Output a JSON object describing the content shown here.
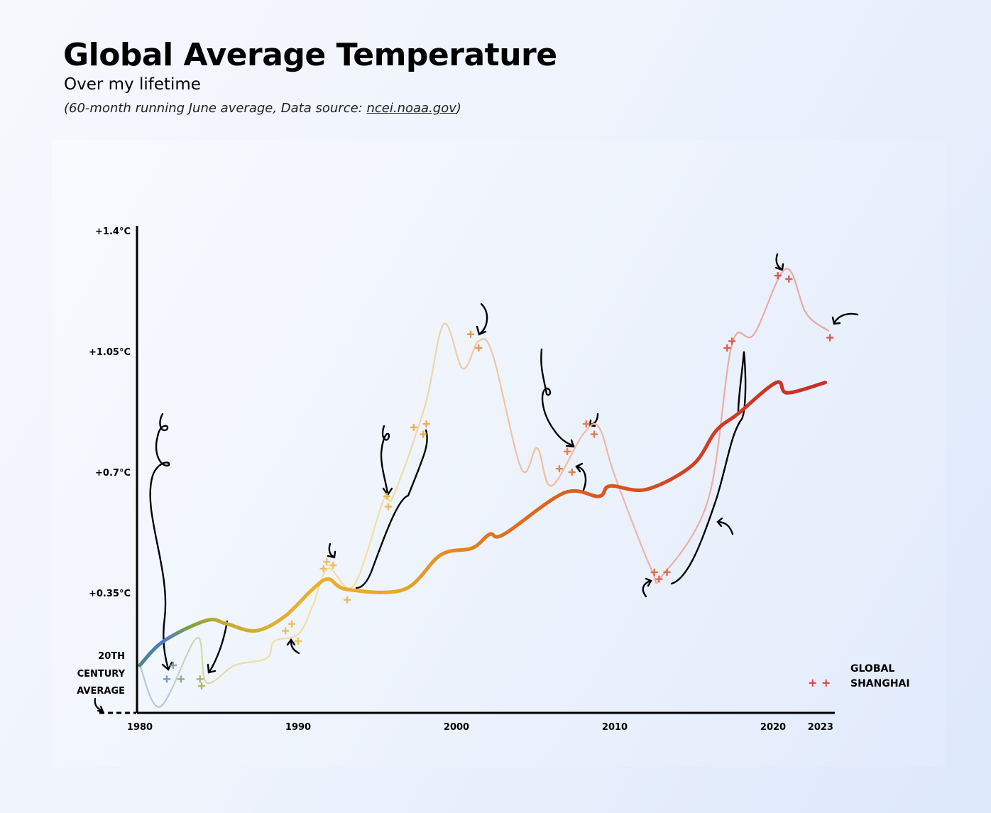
{
  "header": {
    "title": "Global Average Temperature",
    "subtitle": "Over my lifetime",
    "note_prefix": "(60-month running June average, Data source: ",
    "note_link": "ncei.noaa.gov",
    "note_suffix": ")"
  },
  "chart_data": {
    "type": "line",
    "title": "Global Average Temperature",
    "xlim": [
      1980,
      2023
    ],
    "ylim": [
      0,
      1.4
    ],
    "x_ticks": [
      1980,
      1990,
      2000,
      2010,
      2020,
      2023
    ],
    "x_tick_labels": [
      "1980",
      "1990",
      "2000",
      "2010",
      "2020",
      "2023"
    ],
    "y_ticks": [
      0.35,
      0.7,
      1.05,
      1.4
    ],
    "y_tick_labels": [
      "+0.35°C",
      "+0.7°C",
      "+1.05°C",
      "+1.4°C"
    ],
    "baseline_label": [
      "20TH",
      "CENTURY",
      "AVERAGE"
    ],
    "grid": false,
    "legend_position": "bottom-right",
    "series": [
      {
        "name": "GLOBAL",
        "x": [
          1980,
          1981.5,
          1984.2,
          1985.5,
          1987.3,
          1989.1,
          1990.9,
          1991.9,
          1993.1,
          1996.7,
          1999.0,
          2001,
          2002.1,
          2003,
          2006.8,
          2009,
          2009.7,
          2012,
          2014.9,
          2016.4,
          2017.8,
          2020.2,
          2020.9,
          2023.3
        ],
        "y": [
          0.14,
          0.21,
          0.27,
          0.26,
          0.24,
          0.28,
          0.36,
          0.39,
          0.36,
          0.36,
          0.46,
          0.48,
          0.52,
          0.52,
          0.64,
          0.63,
          0.66,
          0.65,
          0.72,
          0.82,
          0.87,
          0.96,
          0.93,
          0.96
        ]
      },
      {
        "name": "SHANGHAI",
        "x": [
          1980,
          1981.3,
          1983.6,
          1984.2,
          1986,
          1988,
          1988.5,
          1990,
          1990.9,
          1991.9,
          1993.5,
          1995.4,
          1996,
          1998,
          1999.2,
          2000.4,
          2001.4,
          2002.3,
          2004.1,
          2005.1,
          2006,
          2008,
          2009,
          2010,
          2012.3,
          2013,
          2015.9,
          2017.4,
          2018.8,
          2020.8,
          2022.1,
          2023.5
        ],
        "y": [
          0.14,
          0.02,
          0.22,
          0.09,
          0.14,
          0.16,
          0.21,
          0.23,
          0.31,
          0.42,
          0.37,
          0.62,
          0.63,
          0.89,
          1.13,
          1.0,
          1.08,
          1.04,
          0.71,
          0.77,
          0.66,
          0.81,
          0.83,
          0.69,
          0.42,
          0.4,
          0.62,
          1.07,
          1.1,
          1.29,
          1.16,
          1.11
        ],
        "markers": {
          "x": [
            1982.1,
            1981.7,
            1982.6,
            1983.8,
            1983.9,
            1989.2,
            1989.6,
            1990,
            1991.6,
            1991.8,
            1992.2,
            1993.1,
            1995.6,
            1995.7,
            1997.3,
            1997.9,
            1998.1,
            2000.9,
            2001.4,
            2006.5,
            2007.3,
            2007,
            2008.2,
            2008.7,
            2012.5,
            2012.8,
            2013.3,
            2017.1,
            2017.4,
            2020.3,
            2021,
            2023.6
          ],
          "y": [
            0.14,
            0.1,
            0.1,
            0.1,
            0.08,
            0.24,
            0.26,
            0.21,
            0.42,
            0.44,
            0.43,
            0.33,
            0.63,
            0.6,
            0.83,
            0.81,
            0.84,
            1.1,
            1.06,
            0.71,
            0.7,
            0.76,
            0.84,
            0.81,
            0.41,
            0.39,
            0.41,
            1.06,
            1.08,
            1.27,
            1.26,
            1.09
          ]
        }
      }
    ],
    "colors": {
      "gradient_by_year": [
        [
          1980,
          "#4a8a78"
        ],
        [
          1981.5,
          "#5078d0"
        ],
        [
          1983,
          "#7aa040"
        ],
        [
          1985,
          "#c0ac30"
        ],
        [
          1990,
          "#e8b030"
        ],
        [
          1996,
          "#e8a828"
        ],
        [
          2003,
          "#e07020"
        ],
        [
          2010,
          "#d85520"
        ],
        [
          2016,
          "#d03c22"
        ],
        [
          2023,
          "#c83028"
        ]
      ],
      "axis": "#000000"
    }
  }
}
